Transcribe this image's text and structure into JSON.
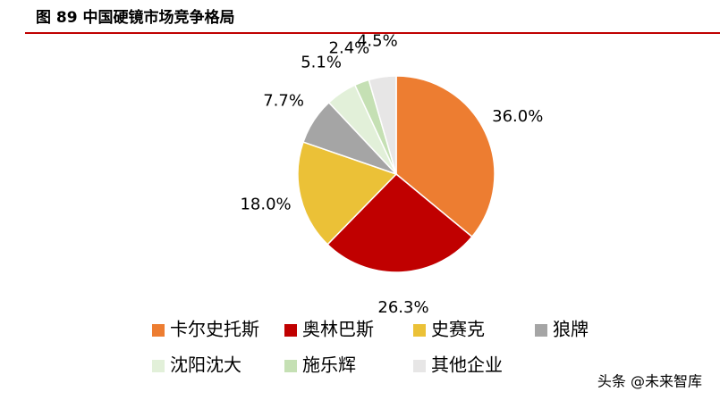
{
  "chart_data": {
    "type": "pie",
    "title": "图 89 中国硬镜市场竞争格局",
    "categories": [
      "卡尔史托斯",
      "奥林巴斯",
      "史赛克",
      "狼牌",
      "沈阳沈大",
      "施乐辉",
      "其他企业"
    ],
    "values": [
      36.0,
      26.3,
      18.0,
      7.7,
      5.1,
      2.4,
      4.5
    ],
    "value_labels": [
      "36.0%",
      "26.3%",
      "18.0%",
      "7.7%",
      "5.1%",
      "2.4%",
      "4.5%"
    ],
    "colors": [
      "#ed7d31",
      "#c00000",
      "#ebc137",
      "#a5a5a5",
      "#e2f0d9",
      "#c5e0b4",
      "#e7e6e6"
    ],
    "watermark": "头条 @未来智库"
  }
}
